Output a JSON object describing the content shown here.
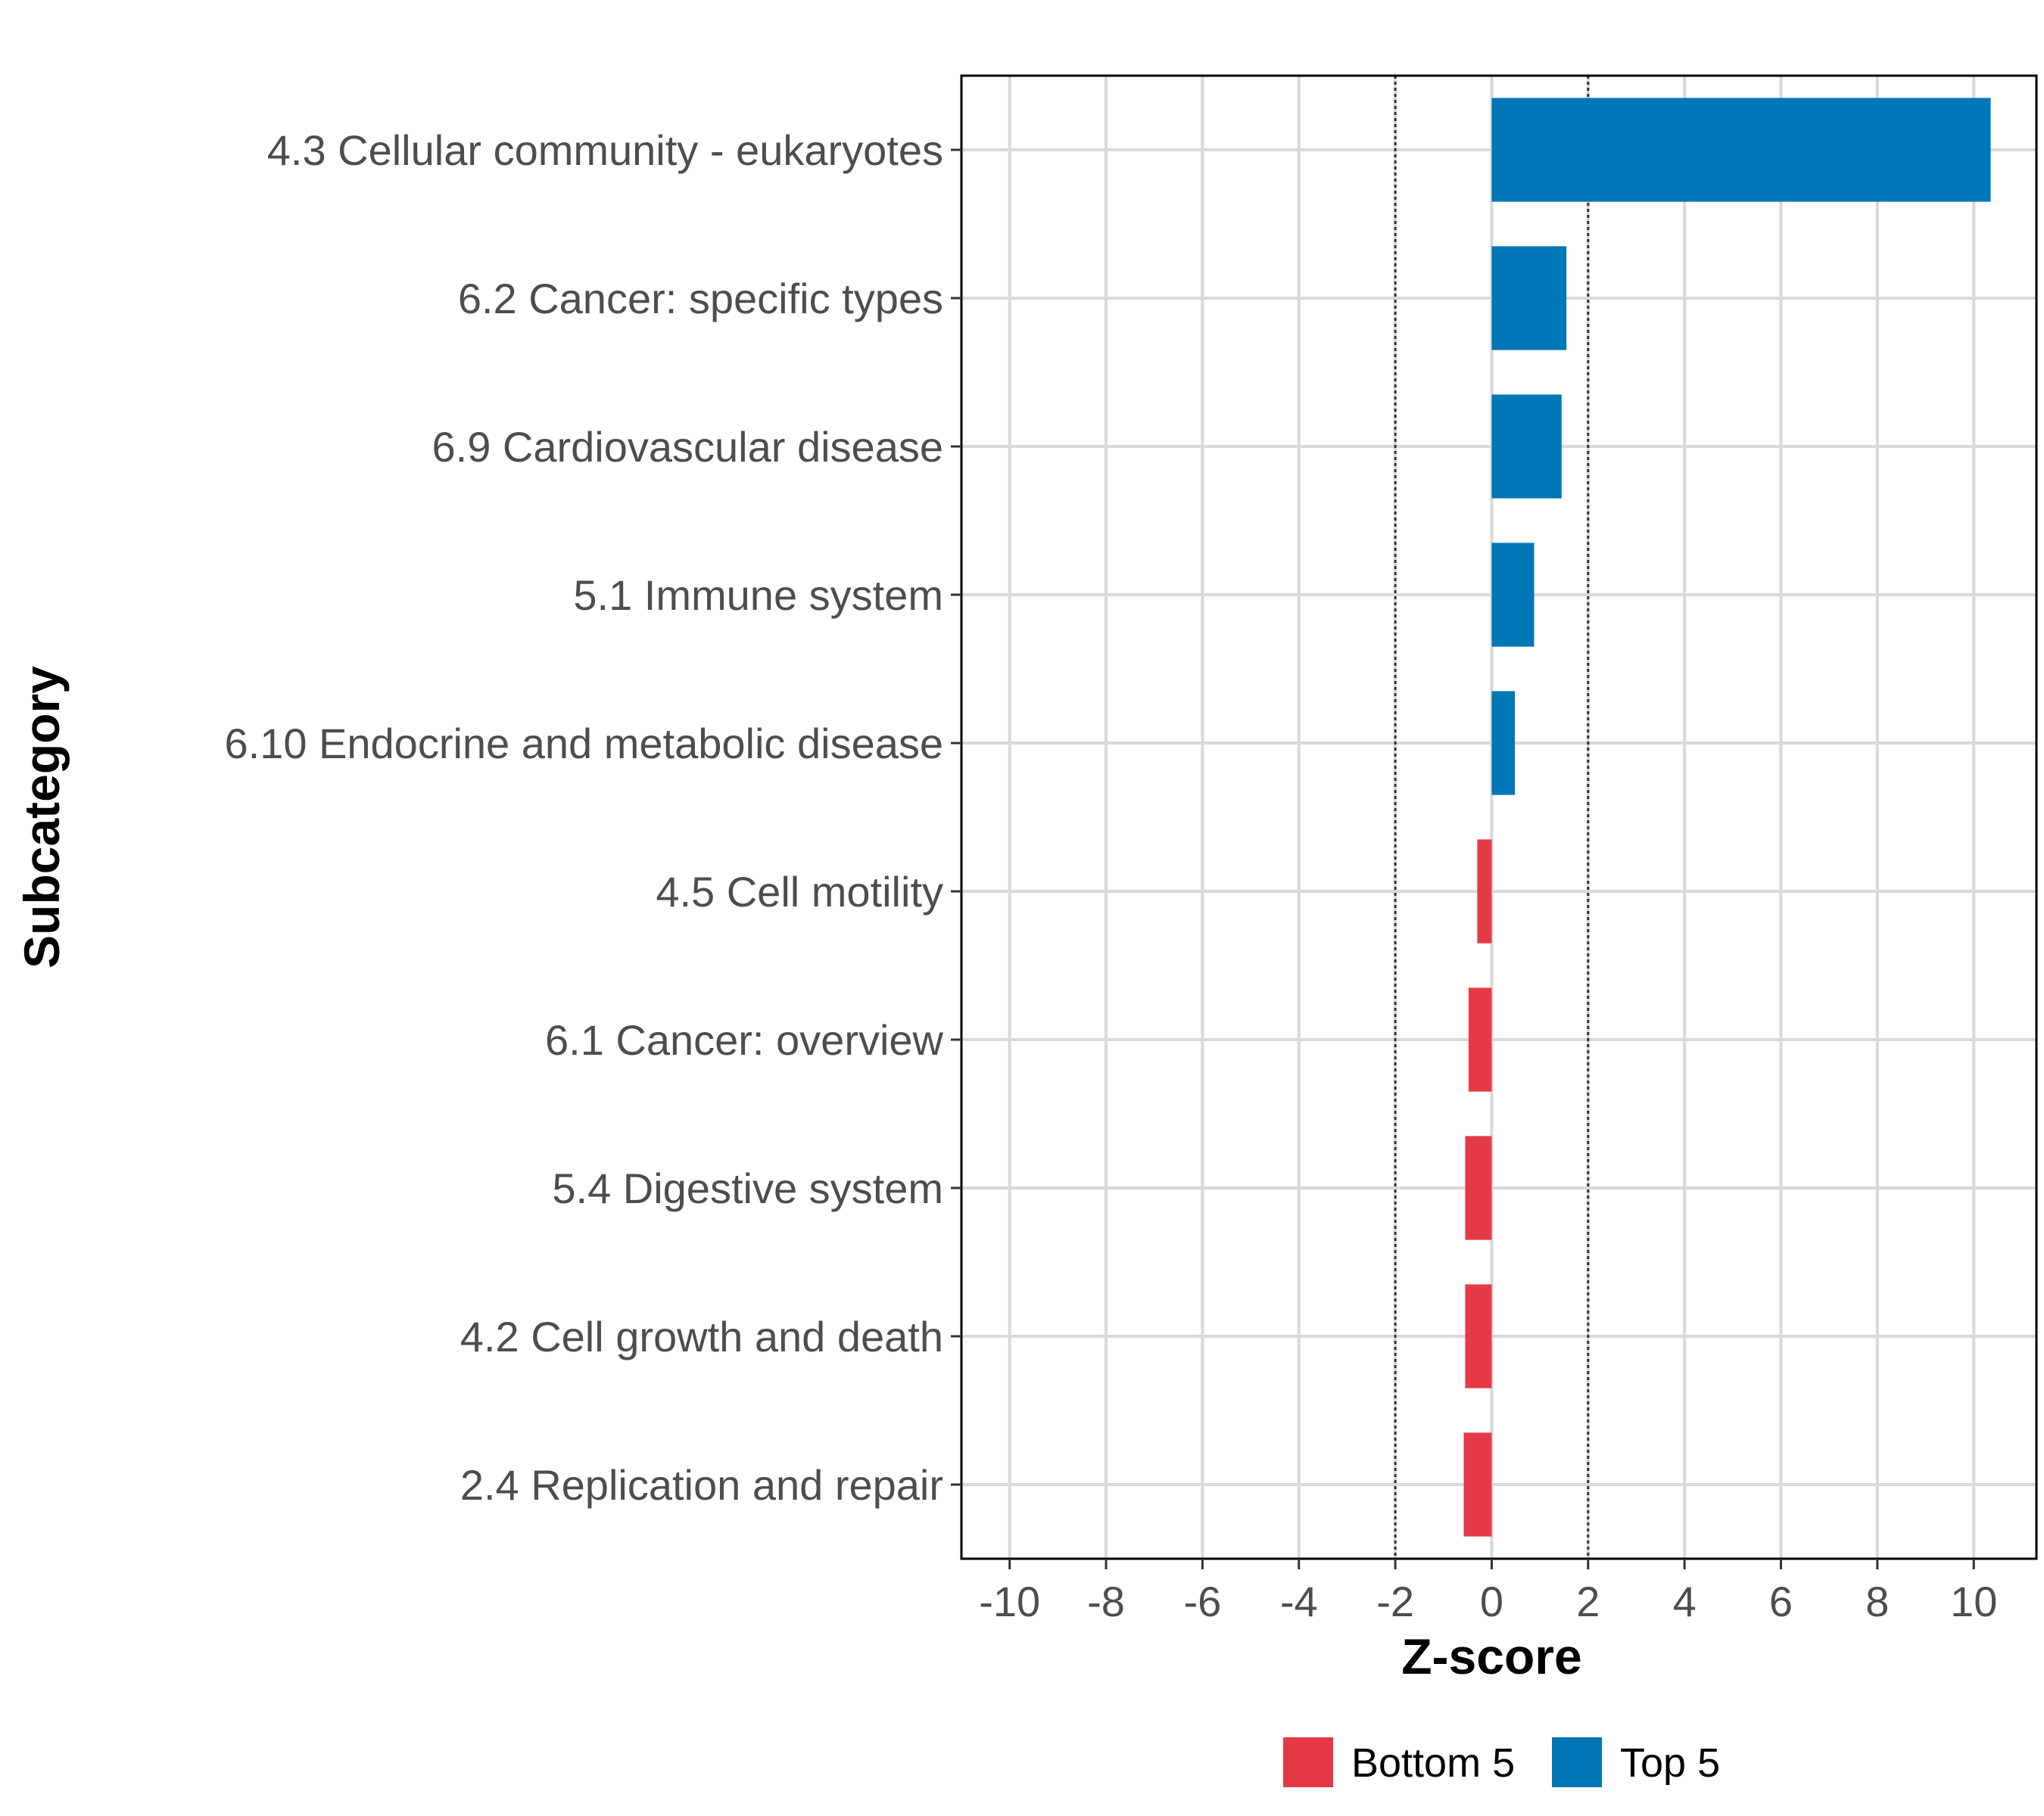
{
  "chart_data": {
    "type": "bar",
    "orientation": "horizontal",
    "title": "",
    "xlabel": "Z-score",
    "ylabel": "Subcategory",
    "xlim": [
      -11.0,
      11.3
    ],
    "xticks": [
      -10,
      -8,
      -6,
      -4,
      -2,
      0,
      2,
      4,
      6,
      8,
      10
    ],
    "xtick_labels": [
      "-10",
      "-8",
      "-6",
      "-4",
      "-2",
      "0",
      "2",
      "4",
      "6",
      "8",
      "10"
    ],
    "reference_lines": [
      -2,
      2
    ],
    "grid": true,
    "legend_position": "bottom",
    "categories": [
      "4.3 Cellular community - eukaryotes",
      "6.2 Cancer: specific types",
      "6.9 Cardiovascular disease",
      "5.1 Immune system",
      "6.10 Endocrine and metabolic disease",
      "4.5 Cell motility",
      "6.1 Cancer: overview",
      "5.4 Digestive system",
      "4.2 Cell growth and death",
      "2.4 Replication and repair"
    ],
    "values": [
      10.35,
      1.55,
      1.45,
      0.88,
      0.48,
      -0.3,
      -0.48,
      -0.55,
      -0.55,
      -0.58
    ],
    "groups": [
      "Top 5",
      "Top 5",
      "Top 5",
      "Top 5",
      "Top 5",
      "Bottom 5",
      "Bottom 5",
      "Bottom 5",
      "Bottom 5",
      "Bottom 5"
    ],
    "legend": [
      {
        "name": "Bottom 5",
        "color": "#e63946"
      },
      {
        "name": "Top 5",
        "color": "#0077b6"
      }
    ]
  }
}
